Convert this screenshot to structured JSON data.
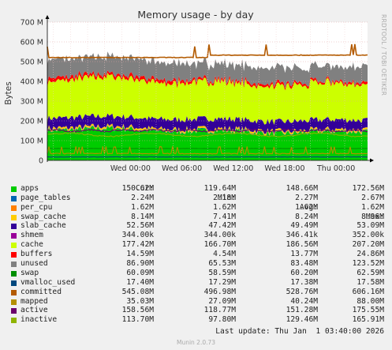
{
  "header": {
    "side_text": "RRDTOOL / TOBI OETIKER"
  },
  "columns": {
    "cur": "Cur:",
    "min": "Min:",
    "avg": "Avg:",
    "max": "Max:"
  },
  "legend": [
    {
      "name": "apps",
      "color": "#00cc00",
      "cur": "150.62M",
      "min": "119.64M",
      "avg": "148.66M",
      "max": "172.56M"
    },
    {
      "name": "page_tables",
      "color": "#0066b3",
      "cur": "2.24M",
      "min": "2.18M",
      "avg": "2.27M",
      "max": "2.67M"
    },
    {
      "name": "per_cpu",
      "color": "#ff8000",
      "cur": "1.62M",
      "min": "1.62M",
      "avg": "1.62M",
      "max": "1.62M"
    },
    {
      "name": "swap_cache",
      "color": "#ffcc00",
      "cur": "8.14M",
      "min": "7.41M",
      "avg": "8.24M",
      "max": "8.96M"
    },
    {
      "name": "slab_cache",
      "color": "#330099",
      "cur": "52.56M",
      "min": "47.42M",
      "avg": "49.49M",
      "max": "53.09M"
    },
    {
      "name": "shmem",
      "color": "#990099",
      "cur": "344.00k",
      "min": "344.00k",
      "avg": "346.41k",
      "max": "352.00k"
    },
    {
      "name": "cache",
      "color": "#ccff00",
      "cur": "177.42M",
      "min": "166.70M",
      "avg": "186.56M",
      "max": "207.20M"
    },
    {
      "name": "buffers",
      "color": "#ff0000",
      "cur": "14.59M",
      "min": "4.54M",
      "avg": "13.77M",
      "max": "24.86M"
    },
    {
      "name": "unused",
      "color": "#808080",
      "cur": "86.90M",
      "min": "65.53M",
      "avg": "83.48M",
      "max": "123.52M"
    },
    {
      "name": "swap",
      "color": "#008f00",
      "cur": "60.09M",
      "min": "58.59M",
      "avg": "60.20M",
      "max": "62.59M"
    },
    {
      "name": "vmalloc_used",
      "color": "#00487d",
      "cur": "17.40M",
      "min": "17.29M",
      "avg": "17.38M",
      "max": "17.58M"
    },
    {
      "name": "committed",
      "color": "#b35a00",
      "cur": "545.08M",
      "min": "496.98M",
      "avg": "528.76M",
      "max": "606.16M"
    },
    {
      "name": "mapped",
      "color": "#b38f00",
      "cur": "35.03M",
      "min": "27.09M",
      "avg": "40.24M",
      "max": "88.00M"
    },
    {
      "name": "active",
      "color": "#6b006b",
      "cur": "158.56M",
      "min": "118.77M",
      "avg": "151.28M",
      "max": "175.55M"
    },
    {
      "name": "inactive",
      "color": "#8fb300",
      "cur": "113.70M",
      "min": "97.80M",
      "avg": "129.46M",
      "max": "165.91M"
    }
  ],
  "footer": {
    "last_update": "Last update: Thu Jan  1 03:40:00 2026",
    "munin_version": "Munin 2.0.73"
  },
  "chart_data": {
    "type": "area",
    "title": "Memory usage - by day",
    "ylabel": "Bytes",
    "ylim": [
      0,
      700
    ],
    "y_unit": "MB",
    "y_ticks": [
      0,
      100,
      200,
      300,
      400,
      500,
      600,
      700
    ],
    "y_tick_labels": [
      "0",
      "100 M",
      "200 M",
      "300 M",
      "400 M",
      "500 M",
      "600 M",
      "700 M"
    ],
    "x_range_hours": [
      -33.7,
      3.67
    ],
    "x_ticks": [
      {
        "label": "Wed 00:00",
        "hour": -24
      },
      {
        "label": "Wed 06:00",
        "hour": -18
      },
      {
        "label": "Wed 12:00",
        "hour": -12
      },
      {
        "label": "Wed 18:00",
        "hour": -6
      },
      {
        "label": "Thu 00:00",
        "hour": 0
      }
    ],
    "grid": true,
    "stacked_series": [
      {
        "name": "apps",
        "color": "#00cc00",
        "avg": 148.66
      },
      {
        "name": "page_tables",
        "color": "#0066b3",
        "avg": 2.27
      },
      {
        "name": "per_cpu",
        "color": "#ff8000",
        "avg": 1.62
      },
      {
        "name": "swap_cache",
        "color": "#ffcc00",
        "avg": 8.24
      },
      {
        "name": "slab_cache",
        "color": "#330099",
        "avg": 49.49
      },
      {
        "name": "shmem",
        "color": "#990099",
        "avg": 0.35
      },
      {
        "name": "cache",
        "color": "#ccff00",
        "avg": 186.56
      },
      {
        "name": "buffers",
        "color": "#ff0000",
        "avg": 13.77
      },
      {
        "name": "unused",
        "color": "#808080",
        "avg": 83.48
      }
    ],
    "line_series": [
      {
        "name": "swap",
        "color": "#008f00",
        "avg": 60.2
      },
      {
        "name": "vmalloc_used",
        "color": "#00487d",
        "avg": 17.38
      },
      {
        "name": "committed",
        "color": "#b35a00",
        "avg": 528.76
      },
      {
        "name": "mapped",
        "color": "#b38f00",
        "avg": 40.24
      },
      {
        "name": "active",
        "color": "#6b006b",
        "avg": 151.28
      },
      {
        "name": "inactive",
        "color": "#8fb300",
        "avg": 129.46
      }
    ]
  }
}
